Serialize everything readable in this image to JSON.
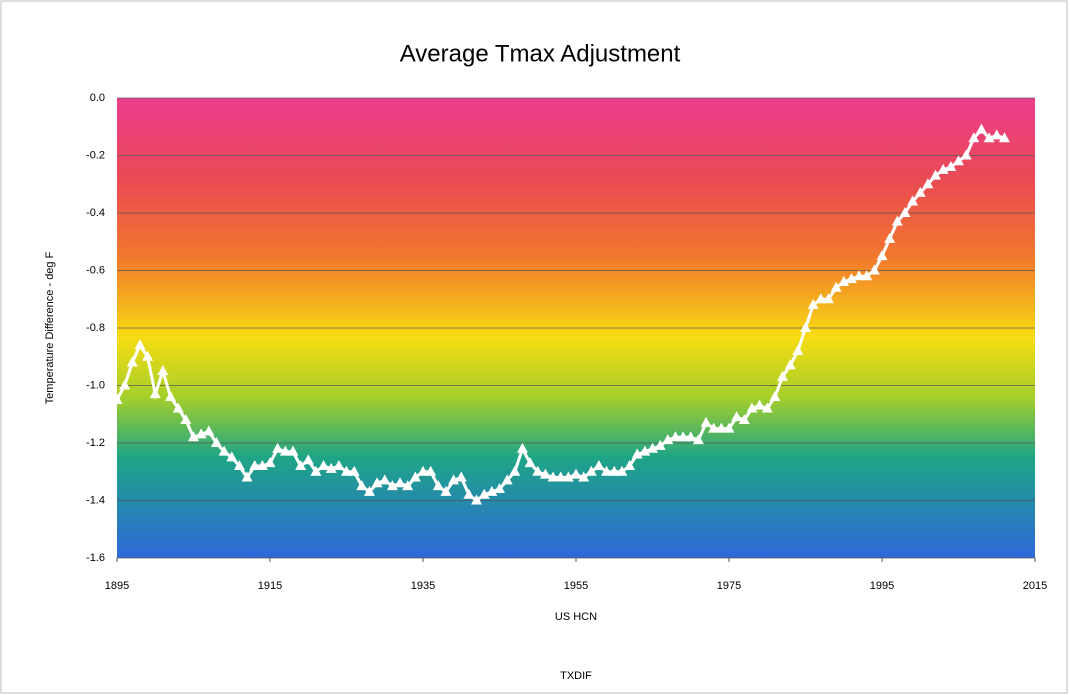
{
  "chart_data": {
    "type": "line",
    "title": "Average Tmax Adjustment",
    "x_label": "US HCN",
    "y_label": "Temperature Difference - deg F",
    "footer": "TXDIF",
    "x": [
      1895,
      1896,
      1897,
      1898,
      1899,
      1900,
      1901,
      1902,
      1903,
      1904,
      1905,
      1906,
      1907,
      1908,
      1909,
      1910,
      1911,
      1912,
      1913,
      1914,
      1915,
      1916,
      1917,
      1918,
      1919,
      1920,
      1921,
      1922,
      1923,
      1924,
      1925,
      1926,
      1927,
      1928,
      1929,
      1930,
      1931,
      1932,
      1933,
      1934,
      1935,
      1936,
      1937,
      1938,
      1939,
      1940,
      1941,
      1942,
      1943,
      1944,
      1945,
      1946,
      1947,
      1948,
      1949,
      1950,
      1951,
      1952,
      1953,
      1954,
      1955,
      1956,
      1957,
      1958,
      1959,
      1960,
      1961,
      1962,
      1963,
      1964,
      1965,
      1966,
      1967,
      1968,
      1969,
      1970,
      1971,
      1972,
      1973,
      1974,
      1975,
      1976,
      1977,
      1978,
      1979,
      1980,
      1981,
      1982,
      1983,
      1984,
      1985,
      1986,
      1987,
      1988,
      1989,
      1990,
      1991,
      1992,
      1993,
      1994,
      1995,
      1996,
      1997,
      1998,
      1999,
      2000,
      2001,
      2002,
      2003,
      2004,
      2005,
      2006,
      2007,
      2008,
      2009,
      2010,
      2011
    ],
    "series": [
      {
        "name": "TXDIF",
        "color": "#ffffff",
        "values": [
          -1.05,
          -1.0,
          -0.92,
          -0.86,
          -0.9,
          -1.03,
          -0.95,
          -1.04,
          -1.08,
          -1.12,
          -1.18,
          -1.17,
          -1.16,
          -1.2,
          -1.23,
          -1.25,
          -1.28,
          -1.32,
          -1.28,
          -1.28,
          -1.27,
          -1.22,
          -1.23,
          -1.23,
          -1.28,
          -1.26,
          -1.3,
          -1.28,
          -1.29,
          -1.28,
          -1.3,
          -1.3,
          -1.35,
          -1.37,
          -1.34,
          -1.33,
          -1.35,
          -1.34,
          -1.35,
          -1.32,
          -1.3,
          -1.3,
          -1.35,
          -1.37,
          -1.33,
          -1.32,
          -1.38,
          -1.4,
          -1.38,
          -1.37,
          -1.36,
          -1.33,
          -1.3,
          -1.22,
          -1.27,
          -1.3,
          -1.31,
          -1.32,
          -1.32,
          -1.32,
          -1.31,
          -1.32,
          -1.3,
          -1.28,
          -1.3,
          -1.3,
          -1.3,
          -1.28,
          -1.24,
          -1.23,
          -1.22,
          -1.21,
          -1.19,
          -1.18,
          -1.18,
          -1.18,
          -1.19,
          -1.13,
          -1.15,
          -1.15,
          -1.15,
          -1.11,
          -1.12,
          -1.08,
          -1.07,
          -1.08,
          -1.04,
          -0.97,
          -0.93,
          -0.88,
          -0.8,
          -0.72,
          -0.7,
          -0.7,
          -0.66,
          -0.64,
          -0.63,
          -0.62,
          -0.62,
          -0.6,
          -0.55,
          -0.49,
          -0.43,
          -0.4,
          -0.36,
          -0.33,
          -0.3,
          -0.27,
          -0.25,
          -0.24,
          -0.22,
          -0.2,
          -0.14,
          -0.11,
          -0.14,
          -0.13,
          -0.14
        ]
      }
    ],
    "xlim": [
      1895,
      2015
    ],
    "xticks": [
      1895,
      1915,
      1935,
      1955,
      1975,
      1995,
      2015
    ],
    "ylim": [
      -1.6,
      0
    ],
    "yticks": [
      {
        "value": 0,
        "label": "0.0"
      },
      -0.2,
      -0.4,
      -0.6,
      -0.8,
      {
        "value": -1,
        "label": "-1.0"
      },
      -1.2,
      -1.4,
      -1.6
    ],
    "grid": true
  }
}
